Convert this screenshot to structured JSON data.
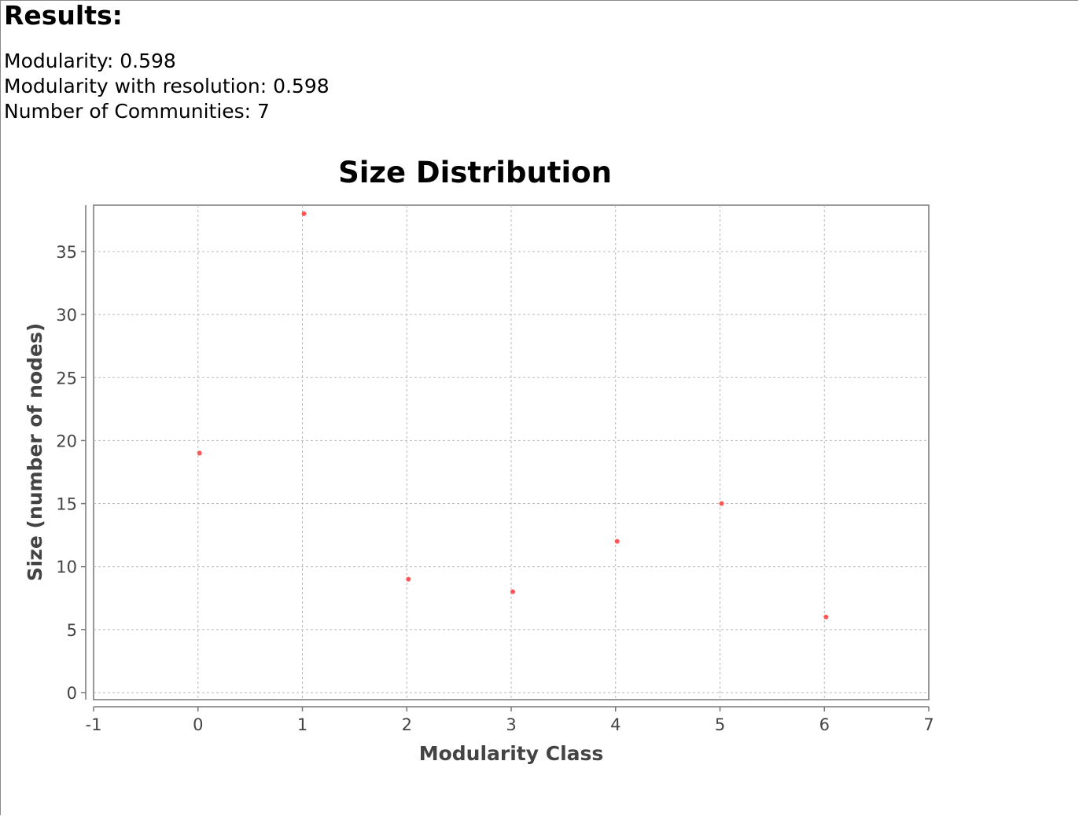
{
  "results": {
    "heading": "Results:",
    "modularity_label": "Modularity: 0.598",
    "modularity_resolution_label": "Modularity with resolution: 0.598",
    "communities_label": "Number of Communities: 7"
  },
  "chart_data": {
    "type": "scatter",
    "title": "Size Distribution",
    "xlabel": "Modularity Class",
    "ylabel": "Size (number of nodes)",
    "xlim": [
      -1,
      7
    ],
    "ylim": [
      0,
      38
    ],
    "xticks": [
      "-1",
      "0",
      "1",
      "2",
      "3",
      "4",
      "5",
      "6",
      "7"
    ],
    "yticks": [
      "0",
      "5",
      "10",
      "15",
      "20",
      "25",
      "30",
      "35"
    ],
    "grid": true,
    "point_color": "#ff5555",
    "x": [
      0,
      1,
      2,
      3,
      4,
      5,
      6
    ],
    "y": [
      19,
      38,
      9,
      8,
      12,
      15,
      6
    ]
  }
}
